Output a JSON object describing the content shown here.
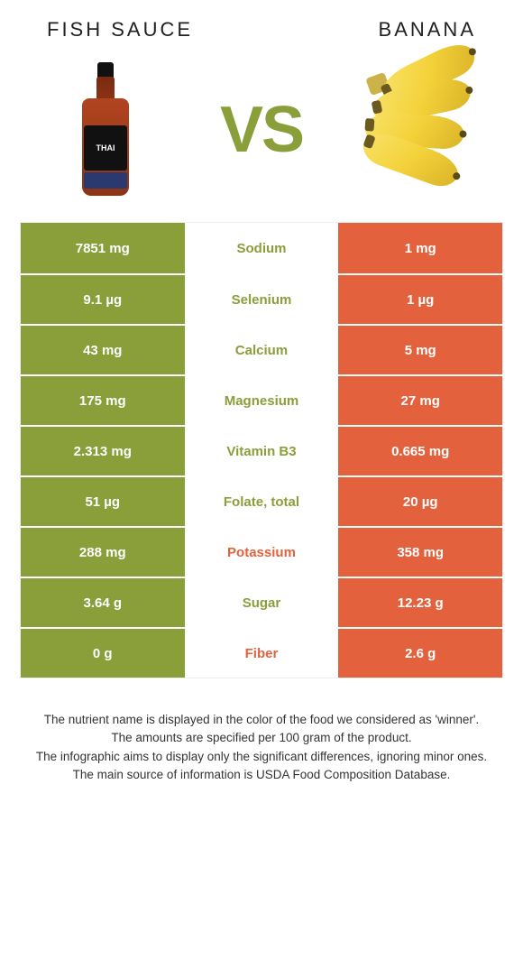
{
  "colors": {
    "left": "#8a9e3a",
    "right": "#e3623d",
    "background": "#ffffff",
    "text": "#333333"
  },
  "header": {
    "left_title": "Fish sauce",
    "right_title": "Banana",
    "vs_label": "VS"
  },
  "table": {
    "rows": [
      {
        "left": "7851 mg",
        "label": "Sodium",
        "right": "1 mg",
        "winner": "left"
      },
      {
        "left": "9.1 µg",
        "label": "Selenium",
        "right": "1 µg",
        "winner": "left"
      },
      {
        "left": "43 mg",
        "label": "Calcium",
        "right": "5 mg",
        "winner": "left"
      },
      {
        "left": "175 mg",
        "label": "Magnesium",
        "right": "27 mg",
        "winner": "left"
      },
      {
        "left": "2.313 mg",
        "label": "Vitamin B3",
        "right": "0.665 mg",
        "winner": "left"
      },
      {
        "left": "51 µg",
        "label": "Folate, total",
        "right": "20 µg",
        "winner": "left"
      },
      {
        "left": "288 mg",
        "label": "Potassium",
        "right": "358 mg",
        "winner": "right"
      },
      {
        "left": "3.64 g",
        "label": "Sugar",
        "right": "12.23 g",
        "winner": "left"
      },
      {
        "left": "0 g",
        "label": "Fiber",
        "right": "2.6 g",
        "winner": "right"
      }
    ]
  },
  "footer": {
    "lines": [
      "The nutrient name is displayed in the color of the food we considered as 'winner'.",
      "The amounts are specified per 100 gram of the product.",
      "The infographic aims to display only the significant differences, ignoring minor ones.",
      "The main source of information is USDA Food Composition Database."
    ]
  }
}
